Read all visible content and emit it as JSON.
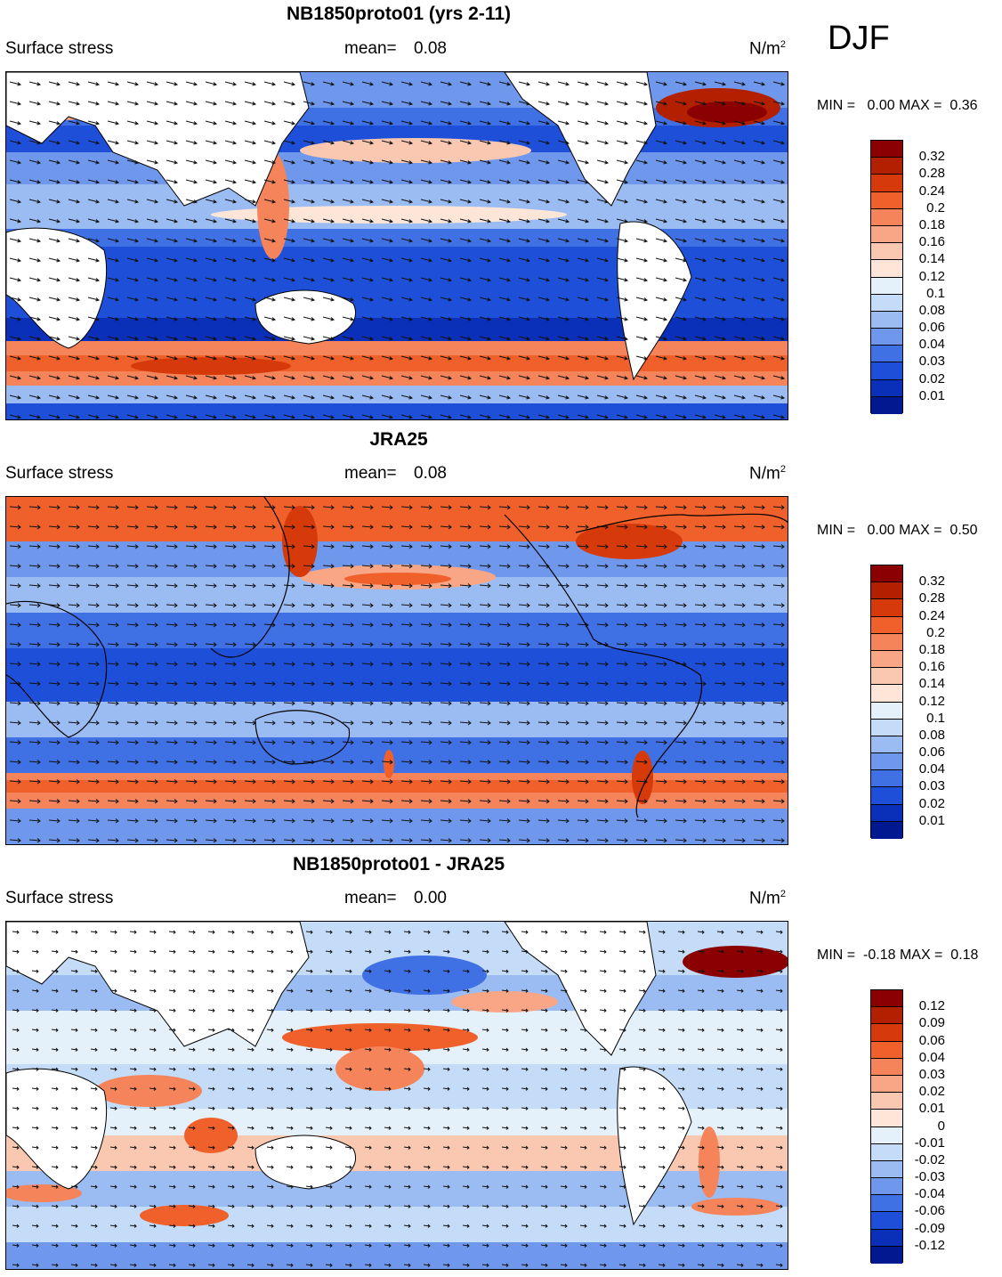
{
  "season": "DJF",
  "panels": [
    {
      "title": "NB1850proto01 (yrs 2-11)",
      "field": "Surface stress",
      "mean_label": "mean=",
      "mean_value": "0.08",
      "units": "N/m",
      "units_sup": "2",
      "min_label": "MIN =",
      "min_value": "0.00",
      "max_label": "MAX =",
      "max_value": "0.36",
      "colorbar": {
        "labels": [
          "0.32",
          "0.28",
          "0.24",
          "0.2",
          "0.18",
          "0.16",
          "0.14",
          "0.12",
          "0.1",
          "0.08",
          "0.06",
          "0.04",
          "0.03",
          "0.02",
          "0.01"
        ],
        "colors": [
          "#8b0000",
          "#b22000",
          "#d63a0a",
          "#f0602a",
          "#f5845a",
          "#f8a686",
          "#fac8b0",
          "#fde6d8",
          "#e4f0fa",
          "#c4dcf7",
          "#9bbcf2",
          "#6f98ec",
          "#3f70e4",
          "#1e4fd8",
          "#0a2fb8",
          "#001890"
        ]
      }
    },
    {
      "title": "JRA25",
      "field": "Surface stress",
      "mean_label": "mean=",
      "mean_value": "0.08",
      "units": "N/m",
      "units_sup": "2",
      "min_label": "MIN =",
      "min_value": "0.00",
      "max_label": "MAX =",
      "max_value": "0.50",
      "colorbar": {
        "labels": [
          "0.32",
          "0.28",
          "0.24",
          "0.2",
          "0.18",
          "0.16",
          "0.14",
          "0.12",
          "0.1",
          "0.08",
          "0.06",
          "0.04",
          "0.03",
          "0.02",
          "0.01"
        ],
        "colors": [
          "#8b0000",
          "#b22000",
          "#d63a0a",
          "#f0602a",
          "#f5845a",
          "#f8a686",
          "#fac8b0",
          "#fde6d8",
          "#e4f0fa",
          "#c4dcf7",
          "#9bbcf2",
          "#6f98ec",
          "#3f70e4",
          "#1e4fd8",
          "#0a2fb8",
          "#001890"
        ]
      }
    },
    {
      "title": "NB1850proto01 - JRA25",
      "field": "Surface stress",
      "mean_label": "mean=",
      "mean_value": "0.00",
      "units": "N/m",
      "units_sup": "2",
      "min_label": "MIN =",
      "min_value": "-0.18",
      "max_label": "MAX =",
      "max_value": "0.18",
      "colorbar": {
        "labels": [
          "0.12",
          "0.09",
          "0.06",
          "0.04",
          "0.03",
          "0.02",
          "0.01",
          "0",
          "-0.01",
          "-0.02",
          "-0.03",
          "-0.04",
          "-0.06",
          "-0.09",
          "-0.12"
        ],
        "colors": [
          "#8b0000",
          "#b22000",
          "#d63a0a",
          "#f0602a",
          "#f5845a",
          "#f8a686",
          "#fac8b0",
          "#fde6d8",
          "#e4f0fa",
          "#c4dcf7",
          "#9bbcf2",
          "#6f98ec",
          "#3f70e4",
          "#1e4fd8",
          "#0a2fb8",
          "#001890"
        ]
      }
    }
  ]
}
